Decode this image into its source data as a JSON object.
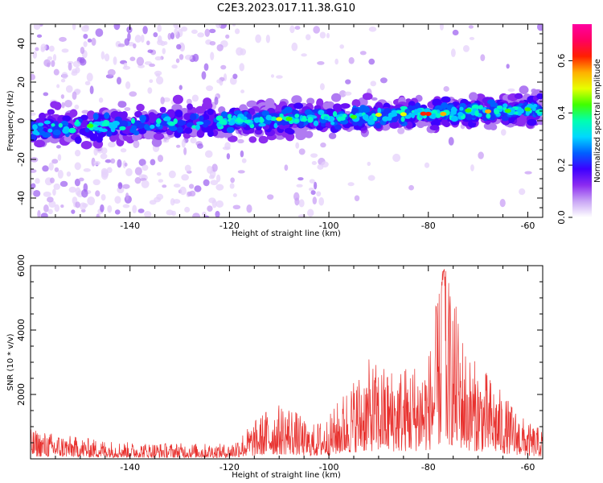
{
  "title": "C2E3.2023.017.11.38.G10",
  "chart_data": [
    {
      "type": "heatmap",
      "xlabel": "Height of straight line (km)",
      "ylabel": "Frequency (Hz)",
      "xlim": [
        -160,
        -57
      ],
      "ylim": [
        -50,
        50
      ],
      "xticks": [
        -140,
        -120,
        -100,
        -80,
        -60
      ],
      "yticks": [
        -40,
        -20,
        0,
        20,
        40
      ],
      "colorbar": {
        "label": "Normalized spectral amplitude",
        "range": [
          0,
          0.74
        ],
        "ticks": [
          0.0,
          0.2,
          0.4,
          0.6
        ],
        "colors": [
          "#ffffff",
          "#c9a6f5",
          "#8c2cf0",
          "#3d00ff",
          "#0060ff",
          "#00d8ff",
          "#00ffb0",
          "#40ff00",
          "#e6ff00",
          "#ffb000",
          "#ff2000",
          "#ff0060",
          "#ff00a0"
        ]
      },
      "band": {
        "center_start_hz": -4,
        "center_end_hz": 6,
        "peak_height_km": -78,
        "noise_region_x": [
          -160,
          -117
        ]
      }
    },
    {
      "type": "line",
      "xlabel": "Height of straight line (km)",
      "ylabel": "SNR (10 * v/v)",
      "xlim": [
        -160,
        -57
      ],
      "ylim": [
        0,
        6000
      ],
      "xticks": [
        -140,
        -120,
        -100,
        -80,
        -60
      ],
      "yticks": [
        2000,
        4000,
        6000
      ],
      "series": [
        {
          "color": "#e8312e",
          "envelope": [
            [
              -160,
              900
            ],
            [
              -150,
              650
            ],
            [
              -140,
              500
            ],
            [
              -130,
              480
            ],
            [
              -120,
              450
            ],
            [
              -116,
              1000
            ],
            [
              -112,
              1600
            ],
            [
              -108,
              1700
            ],
            [
              -104,
              1000
            ],
            [
              -100,
              1300
            ],
            [
              -96,
              2300
            ],
            [
              -92,
              3000
            ],
            [
              -88,
              2800
            ],
            [
              -84,
              2900
            ],
            [
              -80,
              3200
            ],
            [
              -77,
              6000
            ],
            [
              -75,
              5000
            ],
            [
              -72,
              3200
            ],
            [
              -68,
              2600
            ],
            [
              -64,
              1800
            ],
            [
              -60,
              1100
            ],
            [
              -57,
              900
            ]
          ]
        }
      ]
    }
  ]
}
